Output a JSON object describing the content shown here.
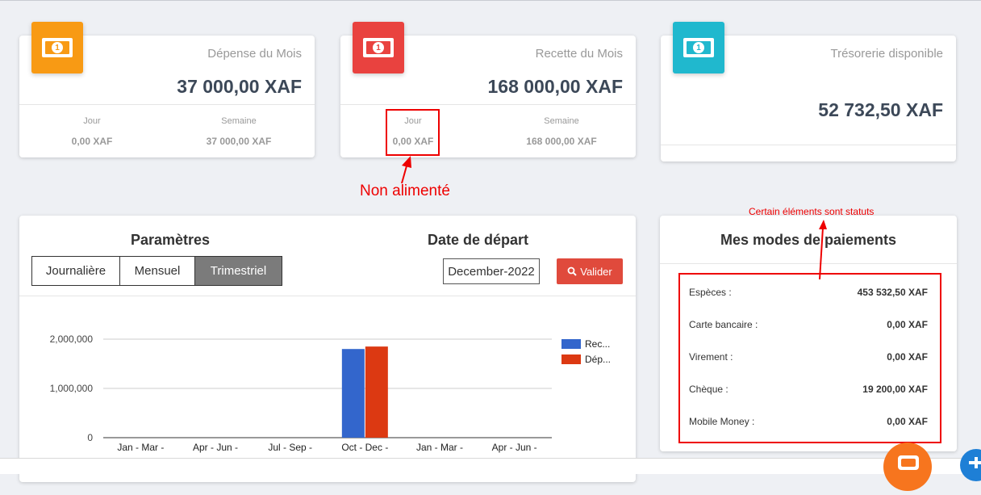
{
  "cards": {
    "expense": {
      "label": "Dépense du Mois",
      "value": "37 000,00 XAF",
      "day_label": "Jour",
      "day_value": "0,00 XAF",
      "week_label": "Semaine",
      "week_value": "37 000,00 XAF",
      "color": "#f89a14"
    },
    "income": {
      "label": "Recette du Mois",
      "value": "168 000,00 XAF",
      "day_label": "Jour",
      "day_value": "0,00 XAF",
      "week_label": "Semaine",
      "week_value": "168 000,00 XAF",
      "color": "#e9423f"
    },
    "treasury": {
      "label": "Trésorerie disponible",
      "value": "52 732,50 XAF",
      "color": "#20b8ce"
    },
    "icon": "money-bill-icon",
    "icon_glyph": "1"
  },
  "parameters": {
    "title": "Paramètres",
    "options": [
      "Journalière",
      "Mensuel",
      "Trimestriel"
    ],
    "active": "Trimestriel"
  },
  "start_date": {
    "title": "Date de départ",
    "value": "December-2022",
    "button_label": "Valider",
    "button_icon": "search-icon"
  },
  "chart_data": {
    "type": "bar",
    "categories": [
      "Jan - Mar -",
      "Apr - Jun -",
      "Jul - Sep -",
      "Oct - Dec -",
      "Jan - Mar -",
      "Apr - Jun -"
    ],
    "series": [
      {
        "name": "Rec...",
        "color": "#3366cc",
        "values": [
          0,
          0,
          0,
          1800000,
          0,
          0
        ]
      },
      {
        "name": "Dép...",
        "color": "#dc3912",
        "values": [
          0,
          0,
          0,
          1850000,
          0,
          0
        ]
      }
    ],
    "ylim": [
      0,
      2000000
    ],
    "yticks": [
      {
        "value": 0,
        "label": "0"
      },
      {
        "value": 1000000,
        "label": "1,000,000"
      },
      {
        "value": 2000000,
        "label": "2,000,000"
      }
    ],
    "legend": "right",
    "grid": true
  },
  "payment_modes": {
    "title": "Mes modes de paiements",
    "items": [
      {
        "label": "Espèces :",
        "amount": "453 532,50 XAF"
      },
      {
        "label": "Carte bancaire :",
        "amount": "0,00 XAF"
      },
      {
        "label": "Virement :",
        "amount": "0,00 XAF"
      },
      {
        "label": "Chèque :",
        "amount": "19 200,00 XAF"
      },
      {
        "label": "Mobile Money :",
        "amount": "0,00 XAF"
      }
    ]
  },
  "annotations": {
    "not_fed": "Non alimenté",
    "static_items": "Certain éléments sont statuts",
    "color": "#e00000"
  }
}
